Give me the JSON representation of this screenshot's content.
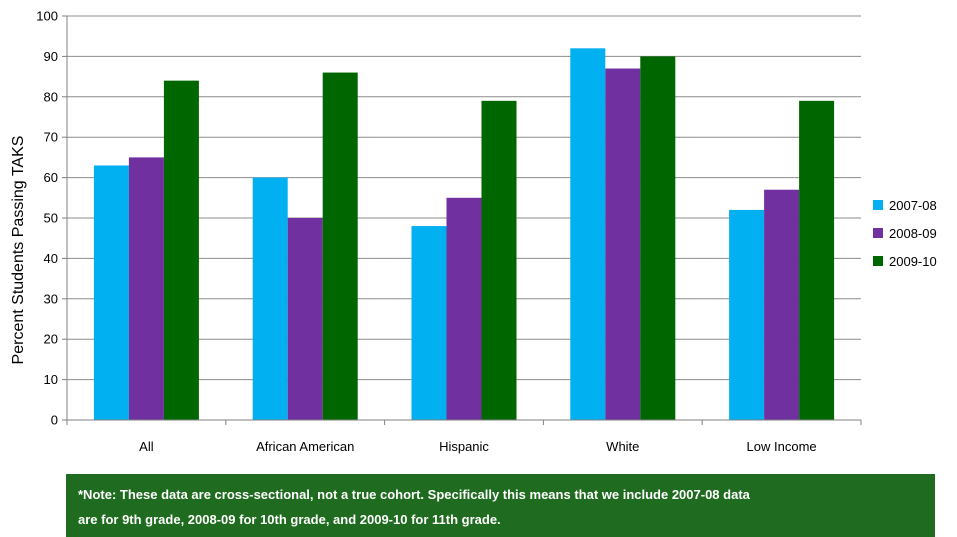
{
  "chart_data": {
    "type": "bar",
    "title": "",
    "xlabel": "",
    "ylabel": "Percent Students Passing TAKS",
    "ylim": [
      0,
      100
    ],
    "yticks": [
      0,
      10,
      20,
      30,
      40,
      50,
      60,
      70,
      80,
      90,
      100
    ],
    "grid": true,
    "legend_position": "right",
    "categories": [
      "All",
      "African American",
      "Hispanic",
      "White",
      "Low Income"
    ],
    "series": [
      {
        "name": "2007-08",
        "color": "#00b0f0",
        "values": [
          63,
          60,
          48,
          92,
          52
        ]
      },
      {
        "name": "2008-09",
        "color": "#7030a0",
        "values": [
          65,
          50,
          55,
          87,
          57
        ]
      },
      {
        "name": "2009-10",
        "color": "#006600",
        "values": [
          84,
          86,
          79,
          90,
          79
        ]
      }
    ]
  },
  "note": {
    "line1": "*Note:  These data are cross-sectional, not a true cohort.  Specifically this means that  we include 2007-08 data",
    "line2": "are for 9th grade, 2008-09 for 10th grade, and 2009-10 for 11th grade.",
    "background": "#1f6b1f"
  }
}
